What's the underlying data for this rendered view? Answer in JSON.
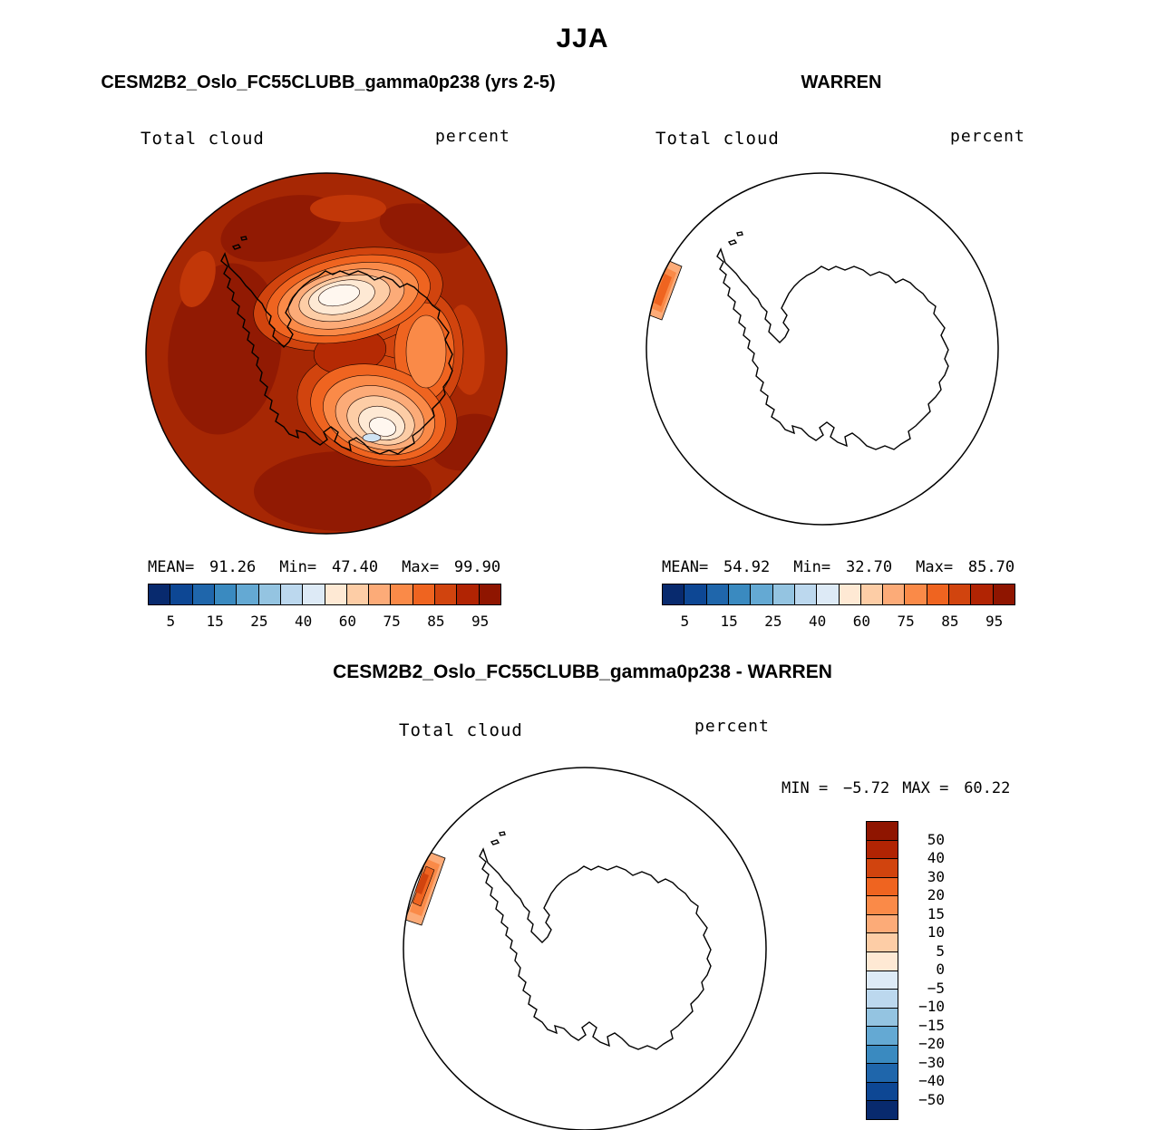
{
  "title": "JJA",
  "panel_model": {
    "title": "CESM2B2_Oslo_FC55CLUBB_gamma0p238 (yrs 2-5)",
    "field": "Total cloud",
    "units": "percent",
    "stats": {
      "mean_label": "MEAN=",
      "mean": "91.26",
      "min_label": "Min=",
      "min": "47.40",
      "max_label": "Max=",
      "max": "99.90"
    }
  },
  "panel_obs": {
    "title": "WARREN",
    "field": "Total cloud",
    "units": "percent",
    "stats": {
      "mean_label": "MEAN=",
      "mean": "54.92",
      "min_label": "Min=",
      "min": "32.70",
      "max_label": "Max=",
      "max": "85.70"
    }
  },
  "panel_diff": {
    "title": "CESM2B2_Oslo_FC55CLUBB_gamma0p238 - WARREN",
    "field": "Total cloud",
    "units": "percent",
    "stats": {
      "min_label": "MIN =",
      "min": "−5.72",
      "max_label": "MAX =",
      "max": "60.22"
    }
  },
  "colorbar": {
    "colors": [
      "#082a6e",
      "#0d4794",
      "#1f66ab",
      "#3a8ac0",
      "#64a9d3",
      "#94c4e1",
      "#bcd8ee",
      "#ddeaf6",
      "#fee9d4",
      "#fdcda6",
      "#fcab78",
      "#fa8a48",
      "#ef6420",
      "#d1440e",
      "#b12403",
      "#8f1500"
    ],
    "ticks": [
      "5",
      "15",
      "25",
      "40",
      "60",
      "75",
      "85",
      "95"
    ]
  },
  "diff_colorbar": {
    "colors": [
      "#8f1500",
      "#b12403",
      "#d1440e",
      "#ef6420",
      "#fa8a48",
      "#fcab78",
      "#fdcda6",
      "#fee9d4",
      "#ddeaf6",
      "#bcd8ee",
      "#94c4e1",
      "#64a9d3",
      "#3a8ac0",
      "#1f66ab",
      "#0d4794",
      "#082a6e"
    ],
    "labels": [
      "50",
      "40",
      "30",
      "20",
      "15",
      "10",
      "5",
      "0",
      "−5",
      "−10",
      "−15",
      "−20",
      "−30",
      "−40",
      "−50"
    ]
  },
  "chart_data": [
    {
      "type": "heatmap",
      "projection": "south-polar-stereographic",
      "region": "Antarctica",
      "season": "JJA",
      "title": "CESM2B2_Oslo_FC55CLUBB_gamma0p238 (yrs 2-5)",
      "variable": "Total cloud",
      "units": "percent",
      "mean": 91.26,
      "min": 47.4,
      "max": 99.9,
      "levels": [
        0,
        5,
        10,
        15,
        20,
        25,
        30,
        40,
        50,
        60,
        70,
        75,
        80,
        85,
        90,
        95,
        100
      ],
      "tick_labels": [
        5,
        15,
        25,
        40,
        60,
        75,
        85,
        95
      ],
      "legend_position": "bottom",
      "notes": "Ocean nearly saturated dark red (95-100%); pale low-cloud region (47-60%) over interior East Antarctica and Ross area"
    },
    {
      "type": "heatmap",
      "projection": "south-polar-stereographic",
      "region": "Antarctica",
      "season": "JJA",
      "title": "WARREN",
      "variable": "Total cloud",
      "units": "percent",
      "mean": 54.92,
      "min": 32.7,
      "max": 85.7,
      "levels": [
        0,
        5,
        10,
        15,
        20,
        25,
        30,
        40,
        50,
        60,
        70,
        75,
        80,
        85,
        90,
        95,
        100
      ],
      "tick_labels": [
        5,
        15,
        25,
        40,
        60,
        75,
        85,
        95
      ],
      "legend_position": "bottom",
      "notes": "Mostly blank (no shaded data) except a small orange strip (~75-85%) near 60S west of the Antarctic Peninsula"
    },
    {
      "type": "heatmap",
      "projection": "south-polar-stereographic",
      "region": "Antarctica",
      "season": "JJA",
      "title": "CESM2B2_Oslo_FC55CLUBB_gamma0p238 - WARREN",
      "variable": "Total cloud difference",
      "units": "percent",
      "min": -5.72,
      "max": 60.22,
      "levels": [
        -50,
        -40,
        -30,
        -20,
        -15,
        -10,
        -5,
        0,
        5,
        10,
        15,
        20,
        30,
        40,
        50
      ],
      "legend_position": "right",
      "notes": "Blank except a small positive (orange/red, ~+20-40%) strip near 60S west of the Antarctic Peninsula"
    }
  ]
}
